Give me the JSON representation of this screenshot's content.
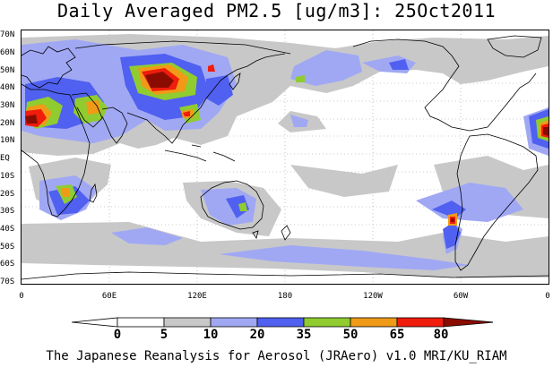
{
  "title": "Daily Averaged PM2.5 [ug/m3]: 25Oct2011",
  "credit": "The Japanese Reanalysis for Aerosol (JRAero) v1.0 MRI/KU_RIAM",
  "latitude_labels": [
    "70N",
    "60N",
    "50N",
    "40N",
    "30N",
    "20N",
    "10N",
    "EQ",
    "10S",
    "20S",
    "30S",
    "40S",
    "50S",
    "60S",
    "70S"
  ],
  "longitude_labels": [
    "0",
    "60E",
    "120E",
    "180",
    "120W",
    "60W",
    "0"
  ],
  "colorbar": {
    "bounds": [
      "0",
      "5",
      "10",
      "20",
      "35",
      "50",
      "65",
      "80"
    ],
    "colors": [
      "#ffffff",
      "#ffffff",
      "#c8c8c8",
      "#a0a8f4",
      "#5060f0",
      "#90cc30",
      "#f09a18",
      "#f01c0c",
      "#8a0c00"
    ]
  },
  "palette": {
    "none": "#ffffff",
    "low": "#c8c8c8",
    "light_blue": "#a0a8f4",
    "blue": "#5060f0",
    "green": "#90cc30",
    "orange": "#f09a18",
    "red": "#f01c0c",
    "dark_red": "#8a0c00"
  }
}
